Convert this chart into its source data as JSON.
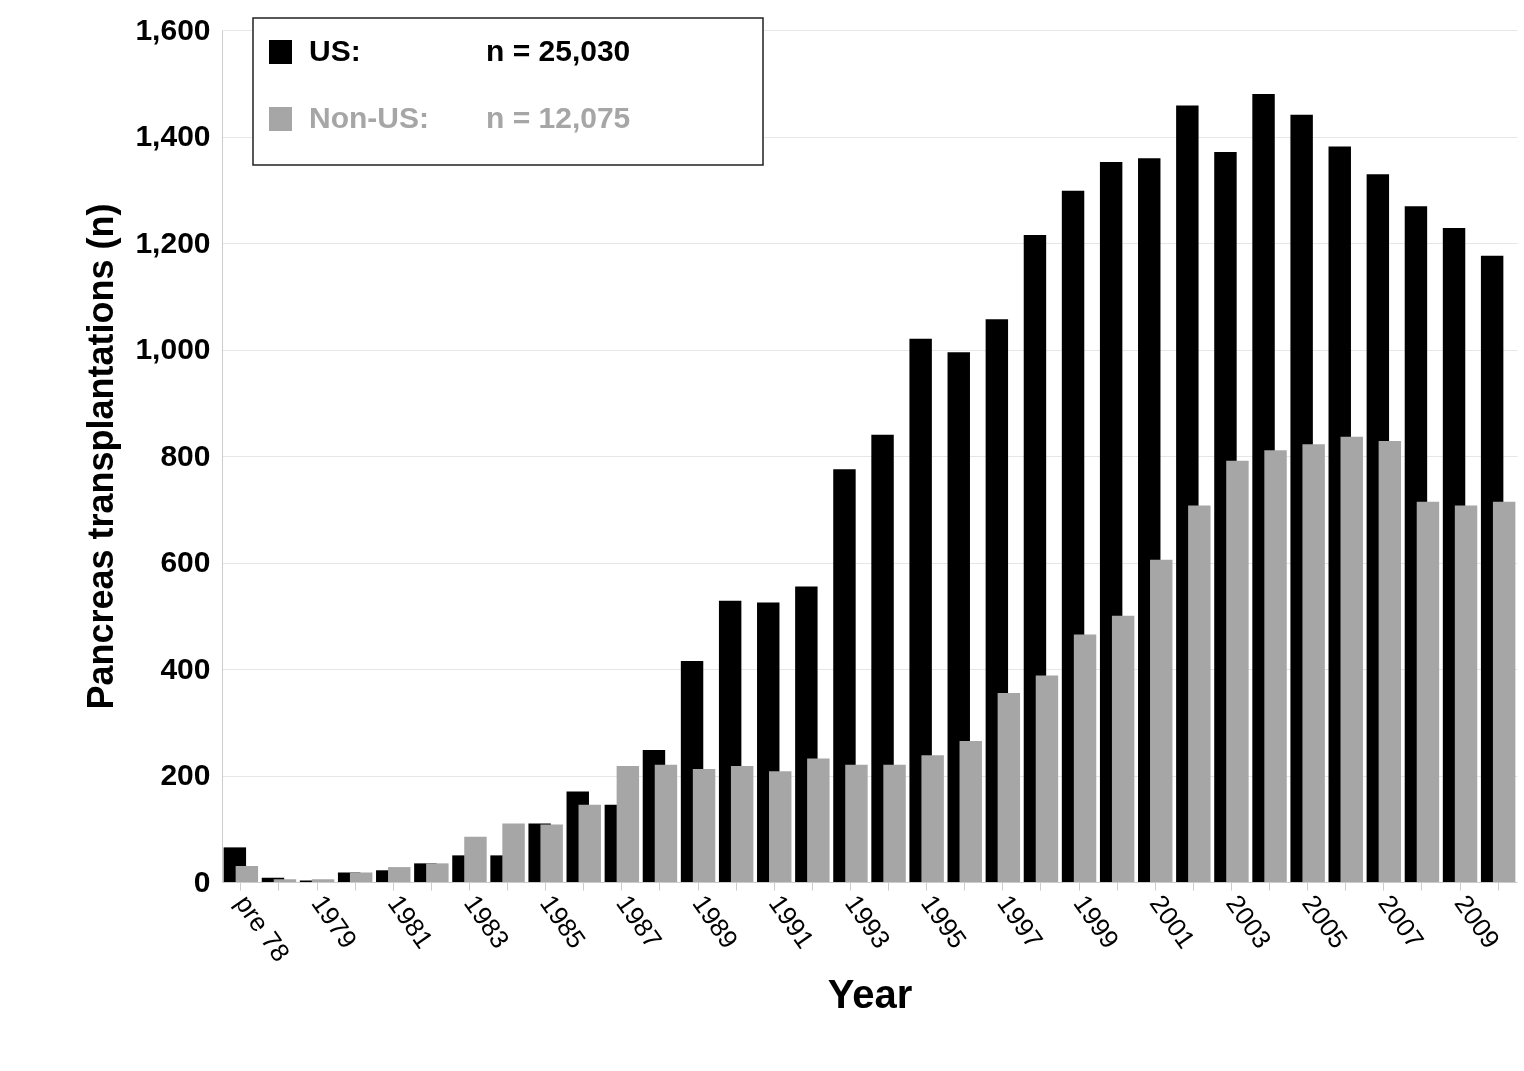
{
  "chart_data": {
    "type": "bar",
    "xlabel": "Year",
    "ylabel": "Pancreas transplantations (n)",
    "categories": [
      "pre 78",
      null,
      "1979",
      null,
      "1981",
      null,
      "1983",
      null,
      "1985",
      null,
      "1987",
      null,
      "1989",
      null,
      "1991",
      null,
      "1993",
      null,
      "1995",
      null,
      "1997",
      null,
      "1999",
      null,
      "2001",
      null,
      "2003",
      null,
      "2005",
      null,
      "2007",
      null,
      "2009",
      null
    ],
    "series": [
      {
        "name": "US:",
        "color": "#000000",
        "values": [
          65,
          8,
          3,
          18,
          22,
          35,
          50,
          50,
          110,
          170,
          145,
          248,
          415,
          528,
          525,
          555,
          775,
          840,
          1020,
          995,
          1057,
          1215,
          1298,
          1352,
          1359,
          1458,
          1371,
          1480,
          1441,
          1381,
          1329,
          1269,
          1228,
          1176
        ]
      },
      {
        "name": "Non-US:",
        "color": "#a6a6a6",
        "values": [
          30,
          5,
          5,
          18,
          28,
          35,
          85,
          110,
          108,
          145,
          218,
          220,
          212,
          218,
          208,
          232,
          220,
          220,
          238,
          265,
          355,
          388,
          465,
          500,
          605,
          707,
          791,
          811,
          822,
          836,
          828,
          714,
          707,
          714
        ]
      }
    ],
    "annotations": [
      "n = 25,030",
      "n = 12,075"
    ],
    "ylim": [
      0,
      1600
    ],
    "yticks": [
      0,
      200,
      400,
      600,
      800,
      {
        "value": 1000,
        "label": "1,000"
      },
      {
        "value": 1200,
        "label": "1,200"
      },
      {
        "value": 1400,
        "label": "1,400"
      },
      {
        "value": 1600,
        "label": "1,600"
      }
    ],
    "grid": "y",
    "legend": "top left"
  }
}
